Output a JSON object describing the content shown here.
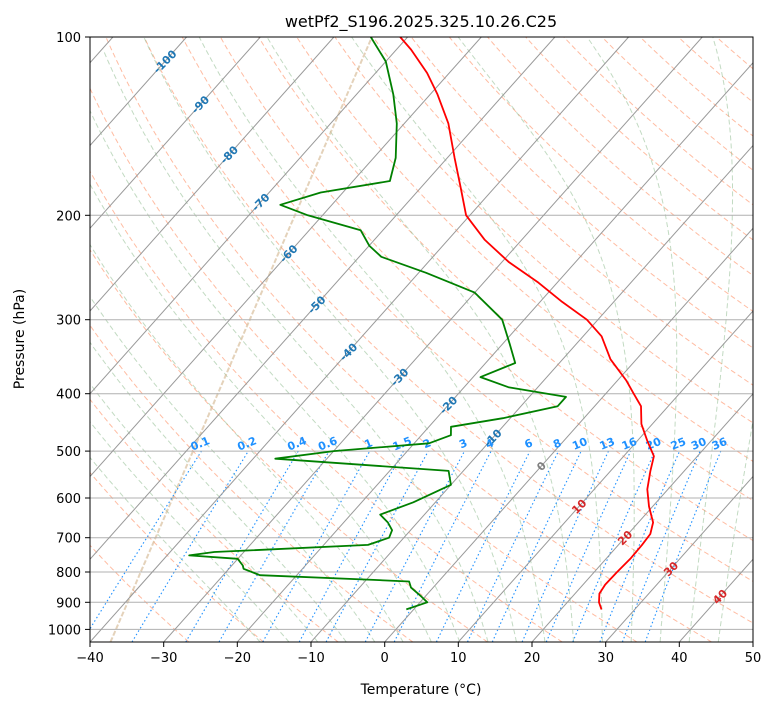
{
  "chart_data": {
    "type": "line",
    "subtype": "skew-t log-p diagram",
    "title": "wetPf2_S196.2025.325.10.26.C25",
    "xlabel": "Temperature (°C)",
    "ylabel": "Pressure (hPa)",
    "xlim": [
      -40,
      50
    ],
    "ylim": [
      1050,
      100
    ],
    "y_scale": "log",
    "grid": true,
    "x_ticks": [
      "−40",
      "−30",
      "−20",
      "−10",
      "0",
      "10",
      "20",
      "30",
      "40",
      "50"
    ],
    "y_ticks": [
      "100",
      "200",
      "300",
      "400",
      "500",
      "600",
      "700",
      "800",
      "900",
      "1000"
    ],
    "isotherm_labels": [
      "-100",
      "-90",
      "-80",
      "-70",
      "-60",
      "-50",
      "-40",
      "-30",
      "-20",
      "-10",
      "0",
      "10",
      "20",
      "30",
      "40"
    ],
    "mixing_ratio_labels": [
      "0.1",
      "0.2",
      "0.4",
      "0.6",
      "1",
      "1.5",
      "2",
      "3",
      "4",
      "6",
      "8",
      "10",
      "13",
      "16",
      "20",
      "25",
      "30",
      "36"
    ],
    "colors": {
      "temperature": "#ff0000",
      "dewpoint": "#008000",
      "isotherm": "#999999",
      "dry_adiabat": "#ffa07a",
      "moist_adiabat": "#8fbc8f",
      "mixing_ratio": "#1e90ff",
      "isotherm_label_cold": "#1f77b4",
      "isotherm_label_zero": "#808080",
      "isotherm_label_warm": "#d62728",
      "mixing_ratio_label": "#1e90ff",
      "ice_line": "#d2b48c"
    },
    "series": [
      {
        "id": "temperature",
        "points": [
          [
            925,
            25.5
          ],
          [
            900,
            24.3
          ],
          [
            870,
            23.3
          ],
          [
            840,
            23.0
          ],
          [
            800,
            23.1
          ],
          [
            760,
            23.3
          ],
          [
            720,
            23.2
          ],
          [
            690,
            23.0
          ],
          [
            660,
            22.0
          ],
          [
            620,
            19.5
          ],
          [
            580,
            17.2
          ],
          [
            540,
            15.4
          ],
          [
            510,
            14.1
          ],
          [
            480,
            11.3
          ],
          [
            450,
            8.5
          ],
          [
            420,
            6.3
          ],
          [
            400,
            3.8
          ],
          [
            380,
            1.2
          ],
          [
            350,
            -3.5
          ],
          [
            320,
            -7.5
          ],
          [
            300,
            -11.5
          ],
          [
            280,
            -17.0
          ],
          [
            260,
            -22.5
          ],
          [
            240,
            -29.0
          ],
          [
            220,
            -35.0
          ],
          [
            200,
            -40.5
          ],
          [
            180,
            -44.5
          ],
          [
            160,
            -49.0
          ],
          [
            140,
            -54.0
          ],
          [
            125,
            -59.0
          ],
          [
            115,
            -63.0
          ],
          [
            105,
            -68.0
          ],
          [
            100,
            -71.0
          ]
        ]
      },
      {
        "id": "dewpoint",
        "points": [
          [
            925,
            -1.0
          ],
          [
            900,
            1.0
          ],
          [
            880,
            -0.5
          ],
          [
            850,
            -3.0
          ],
          [
            830,
            -4.0
          ],
          [
            825,
            -9.0
          ],
          [
            810,
            -25.0
          ],
          [
            790,
            -28.0
          ],
          [
            780,
            -28.5
          ],
          [
            760,
            -30.0
          ],
          [
            750,
            -37.0
          ],
          [
            740,
            -34.0
          ],
          [
            720,
            -14.0
          ],
          [
            700,
            -12.0
          ],
          [
            680,
            -12.5
          ],
          [
            660,
            -14.0
          ],
          [
            640,
            -16.0
          ],
          [
            610,
            -13.0
          ],
          [
            570,
            -10.0
          ],
          [
            540,
            -12.0
          ],
          [
            515,
            -37.0
          ],
          [
            500,
            -30.0
          ],
          [
            485,
            -18.0
          ],
          [
            470,
            -16.0
          ],
          [
            455,
            -17.0
          ],
          [
            440,
            -11.0
          ],
          [
            420,
            -5.0
          ],
          [
            405,
            -5.0
          ],
          [
            390,
            -14.0
          ],
          [
            375,
            -19.0
          ],
          [
            355,
            -16.0
          ],
          [
            330,
            -19.0
          ],
          [
            300,
            -23.0
          ],
          [
            270,
            -30.0
          ],
          [
            250,
            -39.0
          ],
          [
            235,
            -47.0
          ],
          [
            225,
            -50.0
          ],
          [
            212,
            -53.0
          ],
          [
            200,
            -62.0
          ],
          [
            192,
            -67.0
          ],
          [
            183,
            -63.0
          ],
          [
            175,
            -55.0
          ],
          [
            160,
            -57.0
          ],
          [
            140,
            -61.0
          ],
          [
            125,
            -65.0
          ],
          [
            110,
            -70.0
          ],
          [
            100,
            -75.0
          ]
        ]
      }
    ]
  }
}
